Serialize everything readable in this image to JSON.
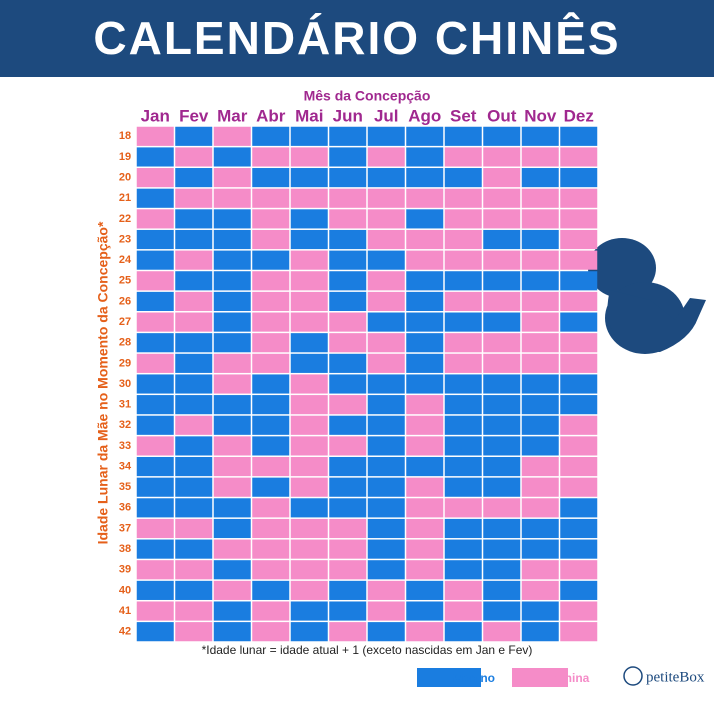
{
  "header": {
    "title": "CALENDÁRIO CHINÊS"
  },
  "chart": {
    "x_title": "Mês da Concepção",
    "y_title": "Idade Lunar da Mãe no Momento da Concepção*",
    "months": [
      "Jan",
      "Fev",
      "Mar",
      "Abr",
      "Mai",
      "Jun",
      "Jul",
      "Ago",
      "Set",
      "Out",
      "Nov",
      "Dez"
    ],
    "ages": [
      "18",
      "19",
      "20",
      "21",
      "22",
      "23",
      "24",
      "25",
      "26",
      "27",
      "28",
      "29",
      "30",
      "31",
      "32",
      "33",
      "34",
      "35",
      "36",
      "37",
      "38",
      "39",
      "40",
      "41",
      "42"
    ],
    "legend": [
      {
        "name": "Menino",
        "color": "#1a7de0"
      },
      {
        "name": "Menina",
        "color": "#f58cc8"
      }
    ],
    "grid": [
      [
        1,
        0,
        1,
        0,
        0,
        0,
        0,
        0,
        0,
        0,
        0,
        0
      ],
      [
        0,
        1,
        0,
        1,
        1,
        0,
        1,
        0,
        1,
        1,
        1,
        1
      ],
      [
        1,
        0,
        1,
        0,
        0,
        0,
        0,
        0,
        0,
        1,
        0,
        0
      ],
      [
        0,
        1,
        1,
        1,
        1,
        1,
        1,
        1,
        1,
        1,
        1,
        1
      ],
      [
        1,
        0,
        0,
        1,
        0,
        1,
        1,
        0,
        1,
        1,
        1,
        1
      ],
      [
        0,
        0,
        0,
        1,
        0,
        0,
        1,
        1,
        1,
        0,
        0,
        1
      ],
      [
        0,
        1,
        0,
        0,
        1,
        0,
        0,
        1,
        1,
        1,
        1,
        1
      ],
      [
        1,
        0,
        0,
        1,
        1,
        0,
        1,
        0,
        0,
        0,
        0,
        0
      ],
      [
        0,
        1,
        0,
        1,
        1,
        0,
        1,
        0,
        1,
        1,
        1,
        1
      ],
      [
        1,
        1,
        0,
        1,
        1,
        1,
        0,
        0,
        0,
        0,
        1,
        0
      ],
      [
        0,
        0,
        0,
        1,
        0,
        1,
        1,
        0,
        1,
        1,
        1,
        1
      ],
      [
        1,
        0,
        1,
        1,
        0,
        0,
        1,
        0,
        1,
        1,
        1,
        1
      ],
      [
        0,
        0,
        1,
        0,
        1,
        0,
        0,
        0,
        0,
        0,
        0,
        0
      ],
      [
        0,
        0,
        0,
        0,
        1,
        1,
        0,
        1,
        0,
        0,
        0,
        0
      ],
      [
        0,
        1,
        0,
        0,
        1,
        0,
        0,
        1,
        0,
        0,
        0,
        1
      ],
      [
        1,
        0,
        1,
        0,
        1,
        1,
        0,
        1,
        0,
        0,
        0,
        1
      ],
      [
        0,
        0,
        1,
        1,
        1,
        0,
        0,
        0,
        0,
        0,
        1,
        1
      ],
      [
        0,
        0,
        1,
        0,
        1,
        0,
        0,
        1,
        0,
        0,
        1,
        1
      ],
      [
        0,
        0,
        0,
        1,
        0,
        0,
        0,
        1,
        1,
        1,
        1,
        0
      ],
      [
        1,
        1,
        0,
        1,
        1,
        1,
        0,
        1,
        0,
        0,
        0,
        0
      ],
      [
        0,
        0,
        1,
        1,
        1,
        1,
        0,
        1,
        0,
        0,
        0,
        0
      ],
      [
        1,
        1,
        0,
        1,
        1,
        1,
        0,
        1,
        0,
        0,
        1,
        1
      ],
      [
        0,
        0,
        1,
        0,
        1,
        0,
        1,
        0,
        1,
        0,
        1,
        0
      ],
      [
        1,
        1,
        0,
        1,
        0,
        0,
        1,
        0,
        1,
        0,
        0,
        1
      ],
      [
        0,
        1,
        0,
        1,
        0,
        1,
        0,
        1,
        0,
        1,
        0,
        1
      ]
    ],
    "footnote": "*Idade lunar = idade atual + 1 (exceto nascidas em Jan e Fev)"
  },
  "logo": "petiteBox"
}
